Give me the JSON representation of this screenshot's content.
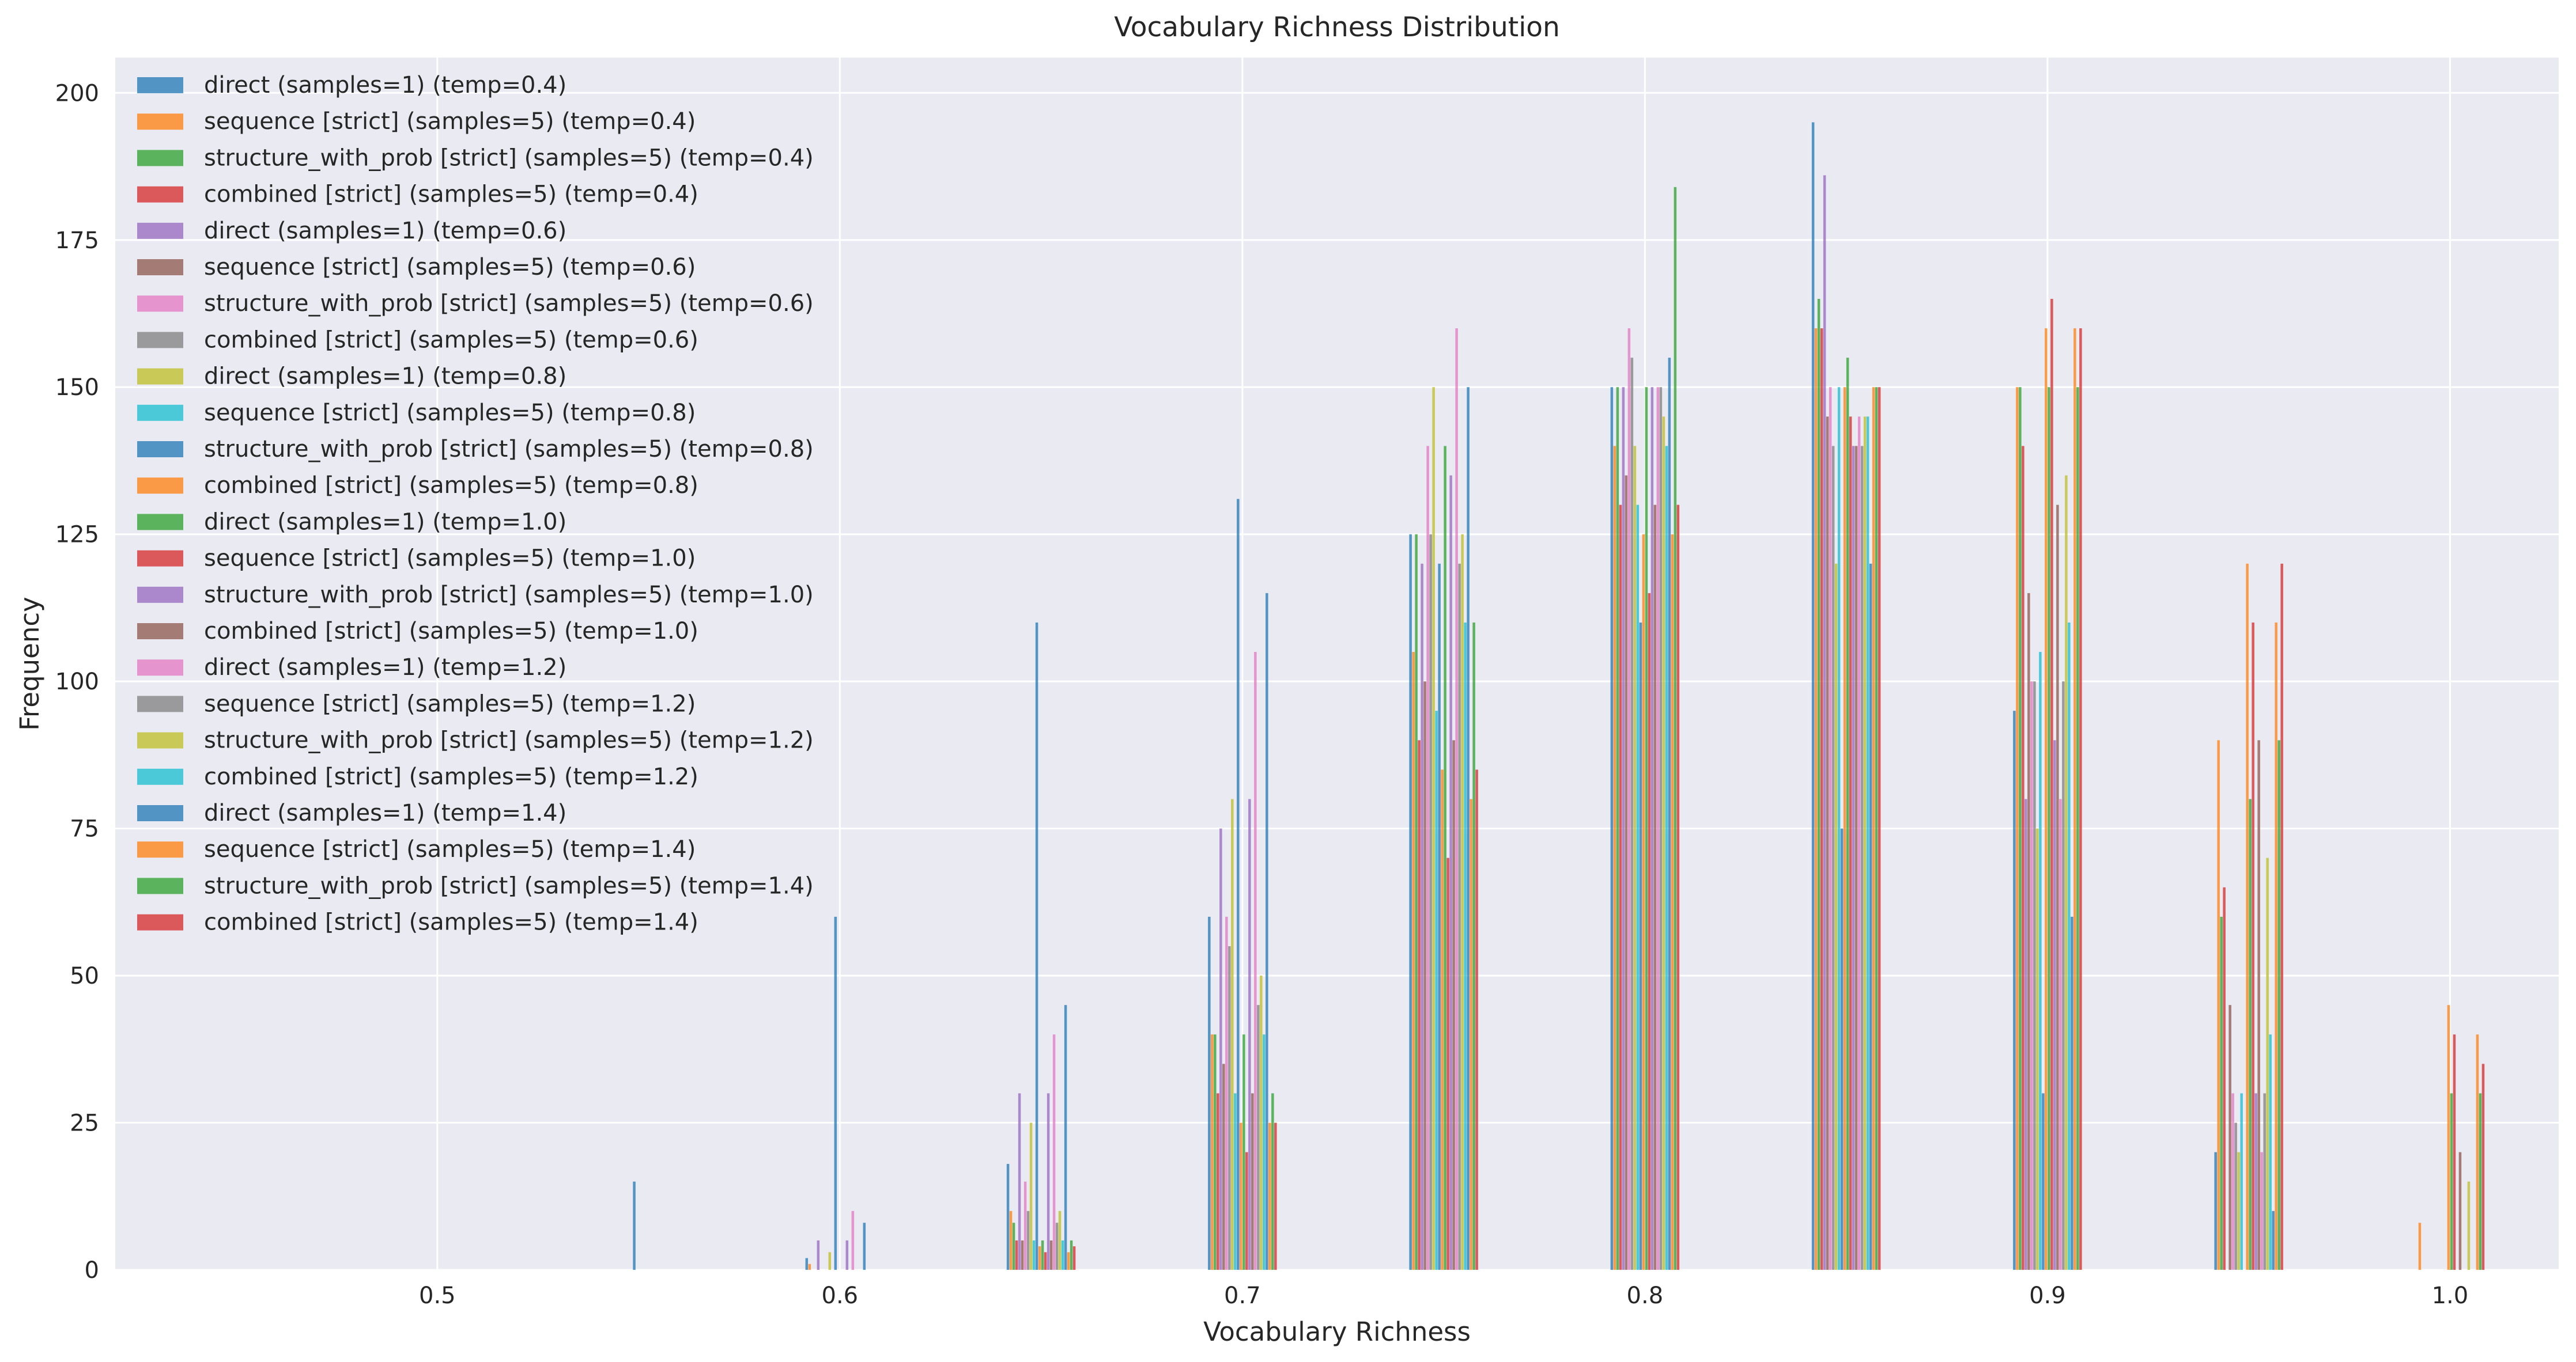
{
  "chart_data": {
    "type": "bar",
    "title": "Vocabulary Richness Distribution",
    "xlabel": "Vocabulary Richness",
    "ylabel": "Frequency",
    "xlim": [
      0.42,
      1.027
    ],
    "ylim": [
      0,
      206
    ],
    "xticks": [
      0.5,
      0.6,
      0.7,
      0.8,
      0.9,
      1.0
    ],
    "xtick_labels": [
      "0.5",
      "0.6",
      "0.7",
      "0.8",
      "0.9",
      "1.0"
    ],
    "yticks": [
      0,
      25,
      50,
      75,
      100,
      125,
      150,
      175,
      200
    ],
    "ytick_labels": [
      "0",
      "25",
      "50",
      "75",
      "100",
      "125",
      "150",
      "175",
      "200"
    ],
    "grid": true,
    "legend_position": "upper-left",
    "series_colors": [
      "#1f77b4",
      "#ff7f0e",
      "#2ca02c",
      "#d62728",
      "#9467bd",
      "#8c564b",
      "#e377c2",
      "#7f7f7f",
      "#bcbd22",
      "#17becf"
    ],
    "series": [
      {
        "name": "direct (samples=1) (temp=0.4)",
        "x": [
          0.6,
          0.65,
          0.7,
          0.75,
          0.8,
          0.85,
          0.9,
          0.95
        ],
        "values": [
          2,
          18,
          60,
          125,
          150,
          195,
          95,
          20
        ]
      },
      {
        "name": "sequence [strict] (samples=5) (temp=0.4)",
        "x": [
          0.6,
          0.65,
          0.7,
          0.75,
          0.8,
          0.85,
          0.9,
          0.95,
          1.0
        ],
        "values": [
          1,
          10,
          40,
          105,
          140,
          160,
          150,
          90,
          8
        ]
      },
      {
        "name": "structure_with_prob [strict] (samples=5) (temp=0.4)",
        "x": [
          0.65,
          0.7,
          0.75,
          0.8,
          0.85,
          0.9,
          0.95
        ],
        "values": [
          8,
          40,
          125,
          150,
          165,
          150,
          60
        ]
      },
      {
        "name": "combined [strict] (samples=5) (temp=0.4)",
        "x": [
          0.65,
          0.7,
          0.75,
          0.8,
          0.85,
          0.9,
          0.95
        ],
        "values": [
          5,
          30,
          90,
          130,
          160,
          140,
          65
        ]
      },
      {
        "name": "direct (samples=1) (temp=0.6)",
        "x": [
          0.6,
          0.65,
          0.7,
          0.75,
          0.8,
          0.85,
          0.9
        ],
        "values": [
          5,
          30,
          75,
          120,
          150,
          186,
          80
        ]
      },
      {
        "name": "sequence [strict] (samples=5) (temp=0.6)",
        "x": [
          0.65,
          0.7,
          0.75,
          0.8,
          0.85,
          0.9,
          0.95
        ],
        "values": [
          5,
          35,
          100,
          135,
          145,
          115,
          45
        ]
      },
      {
        "name": "structure_with_prob [strict] (samples=5) (temp=0.6)",
        "x": [
          0.65,
          0.7,
          0.75,
          0.8,
          0.85,
          0.9,
          0.95
        ],
        "values": [
          15,
          60,
          140,
          160,
          150,
          100,
          30
        ]
      },
      {
        "name": "combined [strict] (samples=5) (temp=0.6)",
        "x": [
          0.65,
          0.7,
          0.75,
          0.8,
          0.85,
          0.9,
          0.95
        ],
        "values": [
          10,
          55,
          125,
          155,
          140,
          100,
          25
        ]
      },
      {
        "name": "direct (samples=1) (temp=0.8)",
        "x": [
          0.6,
          0.65,
          0.7,
          0.75,
          0.8,
          0.85,
          0.9,
          0.95
        ],
        "values": [
          3,
          25,
          80,
          150,
          140,
          120,
          75,
          20
        ]
      },
      {
        "name": "sequence [strict] (samples=5) (temp=0.8)",
        "x": [
          0.65,
          0.7,
          0.75,
          0.8,
          0.85,
          0.9,
          0.95
        ],
        "values": [
          5,
          30,
          95,
          130,
          150,
          105,
          30
        ]
      },
      {
        "name": "structure_with_prob [strict] (samples=5) (temp=0.8)",
        "x": [
          0.55,
          0.6,
          0.65,
          0.7,
          0.75,
          0.8,
          0.85,
          0.9
        ],
        "values": [
          15,
          60,
          110,
          131,
          120,
          110,
          75,
          30
        ]
      },
      {
        "name": "combined [strict] (samples=5) (temp=0.8)",
        "x": [
          0.65,
          0.7,
          0.75,
          0.8,
          0.85,
          0.9,
          0.95,
          1.0
        ],
        "values": [
          4,
          25,
          85,
          125,
          150,
          160,
          120,
          45
        ]
      },
      {
        "name": "direct (samples=1) (temp=1.0)",
        "x": [
          0.65,
          0.7,
          0.75,
          0.8,
          0.85,
          0.9,
          0.95,
          1.0
        ],
        "values": [
          5,
          40,
          140,
          150,
          155,
          150,
          80,
          30
        ]
      },
      {
        "name": "sequence [strict] (samples=5) (temp=1.0)",
        "x": [
          0.65,
          0.7,
          0.75,
          0.8,
          0.85,
          0.9,
          0.95,
          1.0
        ],
        "values": [
          3,
          20,
          70,
          115,
          145,
          165,
          110,
          40
        ]
      },
      {
        "name": "structure_with_prob [strict] (samples=5) (temp=1.0)",
        "x": [
          0.6,
          0.65,
          0.7,
          0.75,
          0.8,
          0.85,
          0.9,
          0.95
        ],
        "values": [
          5,
          30,
          80,
          135,
          150,
          140,
          90,
          30
        ]
      },
      {
        "name": "combined [strict] (samples=5) (temp=1.0)",
        "x": [
          0.65,
          0.7,
          0.75,
          0.8,
          0.85,
          0.9,
          0.95,
          1.0
        ],
        "values": [
          5,
          30,
          90,
          130,
          140,
          130,
          90,
          20
        ]
      },
      {
        "name": "direct (samples=1) (temp=1.2)",
        "x": [
          0.6,
          0.65,
          0.7,
          0.75,
          0.8,
          0.85,
          0.9,
          0.95
        ],
        "values": [
          10,
          40,
          105,
          160,
          150,
          145,
          80,
          20
        ]
      },
      {
        "name": "sequence [strict] (samples=5) (temp=1.2)",
        "x": [
          0.65,
          0.7,
          0.75,
          0.8,
          0.85,
          0.9,
          0.95
        ],
        "values": [
          8,
          45,
          120,
          150,
          140,
          100,
          30
        ]
      },
      {
        "name": "structure_with_prob [strict] (samples=5) (temp=1.2)",
        "x": [
          0.65,
          0.7,
          0.75,
          0.8,
          0.85,
          0.9,
          0.95,
          1.0
        ],
        "values": [
          10,
          50,
          125,
          145,
          145,
          135,
          70,
          15
        ]
      },
      {
        "name": "combined [strict] (samples=5) (temp=1.2)",
        "x": [
          0.65,
          0.7,
          0.75,
          0.8,
          0.85,
          0.9,
          0.95
        ],
        "values": [
          5,
          40,
          110,
          140,
          145,
          110,
          40
        ]
      },
      {
        "name": "direct (samples=1) (temp=1.4)",
        "x": [
          0.6,
          0.65,
          0.7,
          0.75,
          0.8,
          0.85,
          0.9,
          0.95
        ],
        "values": [
          8,
          45,
          115,
          150,
          155,
          120,
          60,
          10
        ]
      },
      {
        "name": "sequence [strict] (samples=5) (temp=1.4)",
        "x": [
          0.65,
          0.7,
          0.75,
          0.8,
          0.85,
          0.9,
          0.95,
          1.0
        ],
        "values": [
          3,
          25,
          80,
          125,
          150,
          160,
          110,
          40
        ]
      },
      {
        "name": "structure_with_prob [strict] (samples=5) (temp=1.4)",
        "x": [
          0.65,
          0.7,
          0.75,
          0.8,
          0.85,
          0.9,
          0.95,
          1.0
        ],
        "values": [
          5,
          30,
          110,
          184,
          150,
          150,
          90,
          30
        ]
      },
      {
        "name": "combined [strict] (samples=5) (temp=1.4)",
        "x": [
          0.65,
          0.7,
          0.75,
          0.8,
          0.85,
          0.9,
          0.95,
          1.0
        ],
        "values": [
          4,
          25,
          85,
          130,
          150,
          160,
          120,
          35
        ]
      }
    ]
  }
}
